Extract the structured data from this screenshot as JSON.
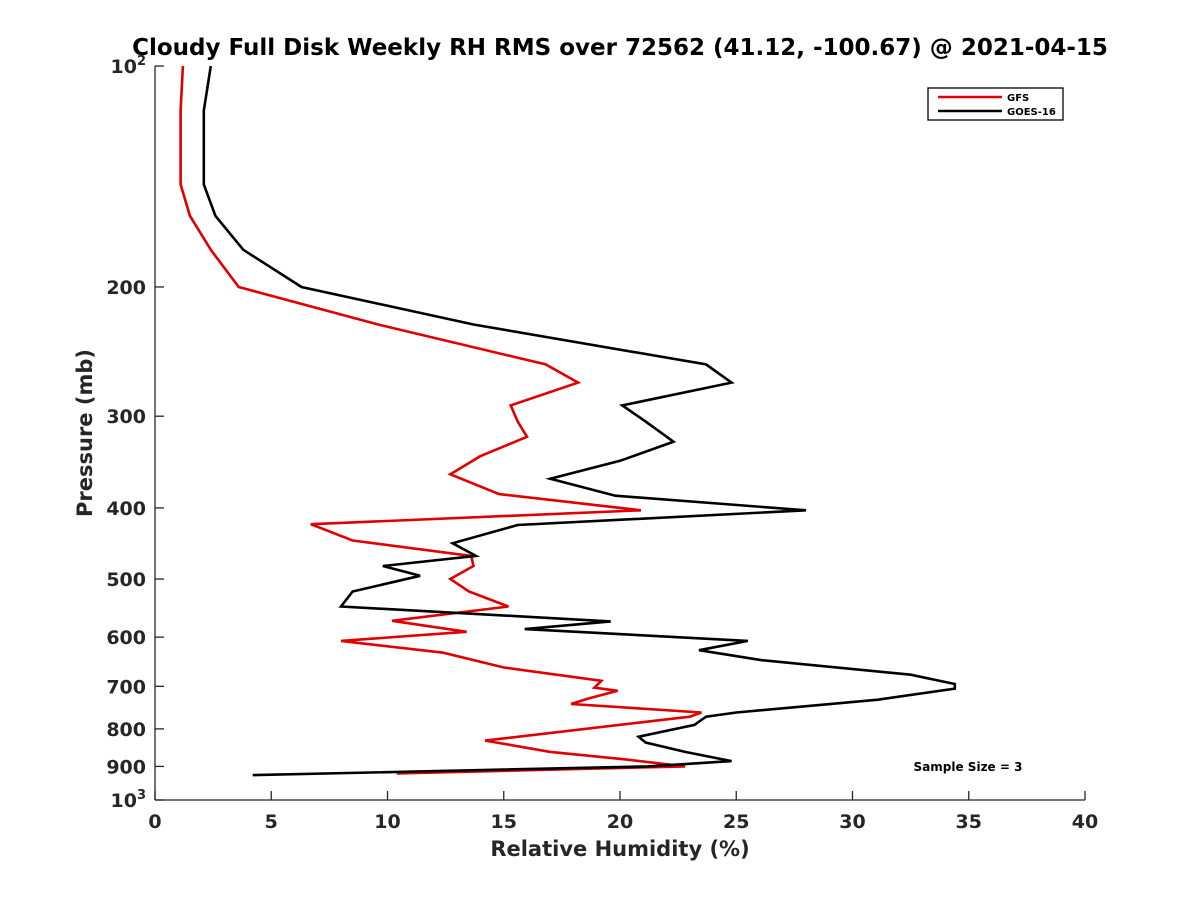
{
  "chart_data": {
    "type": "line",
    "title": "Cloudy Full Disk Weekly RH RMS over 72562 (41.12, -100.67) @ 2021-04-15",
    "xlabel": "Relative Humidity (%)",
    "ylabel": "Pressure (mb)",
    "xlim": [
      0,
      40
    ],
    "ylim": [
      100,
      1000
    ],
    "y_scale": "log",
    "y_reversed": true,
    "grid": false,
    "legend_position": "top-right",
    "x_ticks": [
      "0",
      "5",
      "10",
      "15",
      "20",
      "25",
      "30",
      "35",
      "40"
    ],
    "x_tick_values": [
      0,
      5,
      10,
      15,
      20,
      25,
      30,
      35,
      40
    ],
    "y_ticks": [
      {
        "value": 100,
        "base": "10",
        "exp": "2"
      },
      {
        "value": 200,
        "label": "200"
      },
      {
        "value": 300,
        "label": "300"
      },
      {
        "value": 400,
        "label": "400"
      },
      {
        "value": 500,
        "label": "500"
      },
      {
        "value": 600,
        "label": "600"
      },
      {
        "value": 700,
        "label": "700"
      },
      {
        "value": 800,
        "label": "800"
      },
      {
        "value": 900,
        "label": "900"
      },
      {
        "value": 1000,
        "base": "10",
        "exp": "3"
      }
    ],
    "annotation": "Sample Size = 3",
    "series": [
      {
        "name": "GFS",
        "color": "#e00000",
        "points": [
          [
            1.2,
            100
          ],
          [
            1.1,
            115
          ],
          [
            1.1,
            130
          ],
          [
            1.1,
            145
          ],
          [
            1.5,
            160
          ],
          [
            2.4,
            178
          ],
          [
            3.6,
            200
          ],
          [
            9.6,
            225
          ],
          [
            16.8,
            255
          ],
          [
            18.2,
            270
          ],
          [
            15.3,
            290
          ],
          [
            15.6,
            305
          ],
          [
            16.0,
            320
          ],
          [
            14.0,
            340
          ],
          [
            12.7,
            360
          ],
          [
            14.8,
            383
          ],
          [
            20.9,
            403
          ],
          [
            6.7,
            421
          ],
          [
            8.5,
            443
          ],
          [
            13.6,
            465
          ],
          [
            13.7,
            480
          ],
          [
            12.7,
            500
          ],
          [
            13.5,
            520
          ],
          [
            15.2,
            545
          ],
          [
            10.2,
            570
          ],
          [
            13.4,
            590
          ],
          [
            8.0,
            607
          ],
          [
            12.4,
            630
          ],
          [
            15.0,
            660
          ],
          [
            19.2,
            688
          ],
          [
            18.9,
            703
          ],
          [
            19.9,
            710
          ],
          [
            18.6,
            728
          ],
          [
            17.9,
            740
          ],
          [
            23.5,
            760
          ],
          [
            23.0,
            770
          ],
          [
            14.2,
            830
          ],
          [
            17.0,
            860
          ],
          [
            20.2,
            880
          ],
          [
            22.8,
            900
          ],
          [
            10.4,
            920
          ]
        ]
      },
      {
        "name": "GOES-16",
        "color": "#000000",
        "points": [
          [
            2.4,
            100
          ],
          [
            2.1,
            115
          ],
          [
            2.1,
            130
          ],
          [
            2.1,
            145
          ],
          [
            2.6,
            160
          ],
          [
            3.8,
            178
          ],
          [
            6.3,
            200
          ],
          [
            13.7,
            225
          ],
          [
            23.7,
            255
          ],
          [
            24.8,
            270
          ],
          [
            20.1,
            290
          ],
          [
            21.1,
            305
          ],
          [
            22.3,
            325
          ],
          [
            20.0,
            345
          ],
          [
            17.0,
            365
          ],
          [
            19.8,
            385
          ],
          [
            28.0,
            403
          ],
          [
            15.6,
            422
          ],
          [
            12.8,
            447
          ],
          [
            13.8,
            465
          ],
          [
            9.8,
            480
          ],
          [
            11.4,
            495
          ],
          [
            8.5,
            520
          ],
          [
            8.0,
            545
          ],
          [
            19.6,
            571
          ],
          [
            15.9,
            585
          ],
          [
            25.5,
            607
          ],
          [
            23.4,
            625
          ],
          [
            26.1,
            645
          ],
          [
            32.5,
            675
          ],
          [
            34.4,
            695
          ],
          [
            34.4,
            705
          ],
          [
            31.1,
            730
          ],
          [
            25.0,
            760
          ],
          [
            23.7,
            770
          ],
          [
            23.2,
            790
          ],
          [
            20.8,
            820
          ],
          [
            21.1,
            835
          ],
          [
            22.8,
            860
          ],
          [
            24.8,
            885
          ],
          [
            21.2,
            900
          ],
          [
            4.2,
            925
          ]
        ]
      }
    ]
  }
}
